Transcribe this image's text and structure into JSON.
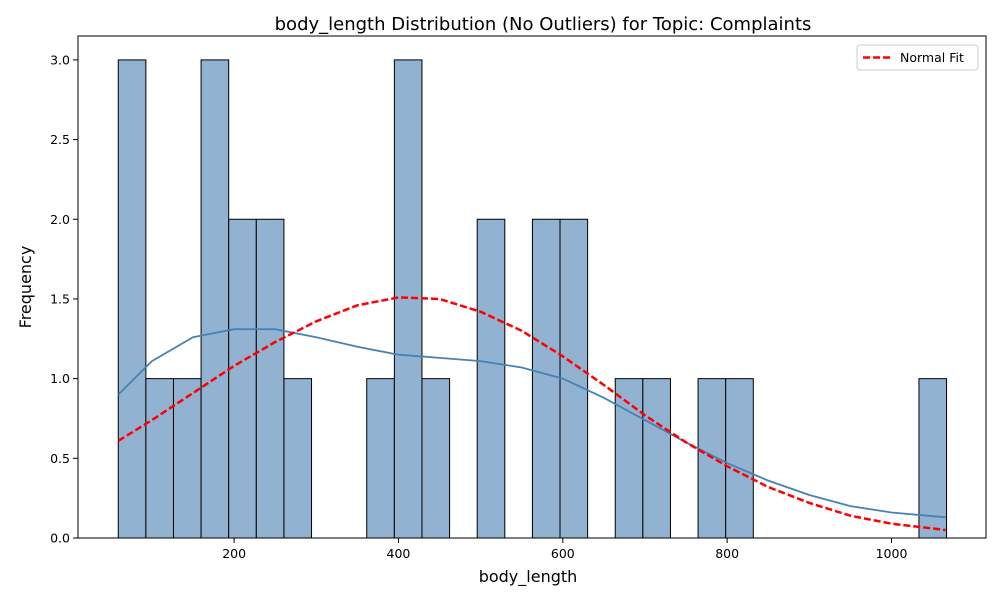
{
  "chart_data": {
    "type": "bar",
    "title": "body_length Distribution (No Outliers) for Topic: Complaints",
    "xlabel": "body_length",
    "ylabel": "Frequency",
    "xlim": [
      10,
      1115
    ],
    "ylim": [
      0,
      3.15
    ],
    "x_ticks": [
      200,
      400,
      600,
      800,
      1000
    ],
    "y_ticks": [
      0.0,
      0.5,
      1.0,
      1.5,
      2.0,
      2.5,
      3.0
    ],
    "y_tick_labels": [
      "0.0",
      "0.5",
      "1.0",
      "1.5",
      "2.0",
      "2.5",
      "3.0"
    ],
    "bin_start": 59,
    "bin_width": 33.6,
    "counts": [
      3,
      1,
      1,
      3,
      2,
      2,
      1,
      0,
      0,
      1,
      3,
      1,
      0,
      2,
      0,
      2,
      2,
      0,
      1,
      1,
      0,
      1,
      1,
      0,
      0,
      0,
      0,
      0,
      0,
      1
    ],
    "bar_color": "#92b2d1",
    "bar_edge_color": "#000000",
    "kde": {
      "color": "#4682b4",
      "x": [
        59,
        100,
        150,
        200,
        250,
        300,
        350,
        400,
        450,
        500,
        550,
        600,
        650,
        700,
        750,
        800,
        850,
        900,
        950,
        1000,
        1066
      ],
      "y": [
        0.9,
        1.11,
        1.26,
        1.31,
        1.31,
        1.26,
        1.2,
        1.15,
        1.13,
        1.11,
        1.07,
        1.0,
        0.88,
        0.74,
        0.6,
        0.47,
        0.36,
        0.27,
        0.2,
        0.16,
        0.13
      ]
    },
    "normal_fit": {
      "name": "Normal Fit",
      "color": "#ff0000",
      "x": [
        59,
        100,
        150,
        200,
        250,
        300,
        350,
        400,
        450,
        500,
        550,
        600,
        650,
        700,
        750,
        800,
        850,
        900,
        950,
        1000,
        1066
      ],
      "y": [
        0.61,
        0.74,
        0.91,
        1.08,
        1.23,
        1.36,
        1.46,
        1.51,
        1.5,
        1.42,
        1.3,
        1.14,
        0.96,
        0.77,
        0.6,
        0.45,
        0.32,
        0.22,
        0.14,
        0.09,
        0.05
      ]
    },
    "legend": {
      "placement": "top-right",
      "entries": [
        "Normal Fit"
      ]
    },
    "grid": false
  }
}
